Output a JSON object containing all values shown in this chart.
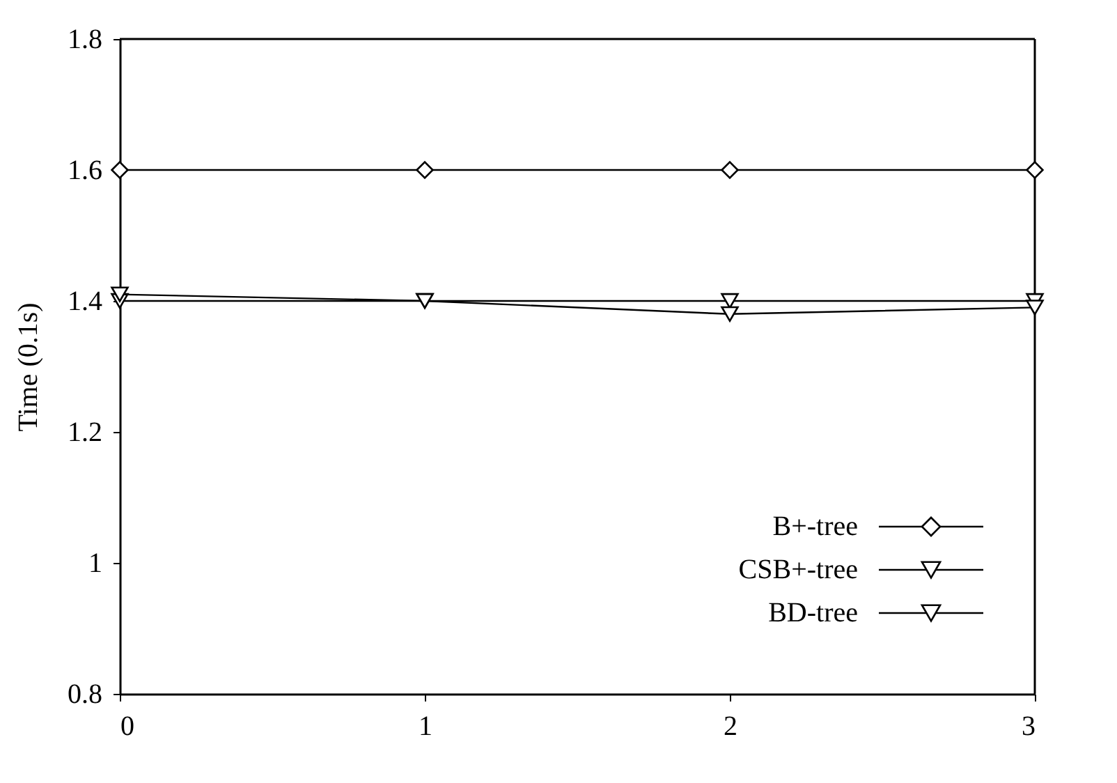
{
  "chart_data": {
    "type": "line",
    "ylabel": "Time (0.1s)",
    "x": [
      0,
      1,
      2,
      3
    ],
    "series": [
      {
        "name": "B+-tree",
        "color": "#000000",
        "marker": "diamond",
        "values": [
          1.6,
          1.6,
          1.6,
          1.6
        ]
      },
      {
        "name": "CSB+-tree",
        "color": "#000000",
        "marker": "triangle",
        "values": [
          1.4,
          1.4,
          1.4,
          1.4
        ]
      },
      {
        "name": "BD-tree",
        "color": "#000000",
        "marker": "triangle",
        "values": [
          1.41,
          1.4,
          1.38,
          1.39
        ]
      }
    ],
    "xlim": [
      0,
      3
    ],
    "xticks": [
      0,
      1,
      2,
      3
    ],
    "ylim": [
      0.8,
      1.8
    ],
    "yticks": [
      0.8,
      1,
      1.2,
      1.4,
      1.6,
      1.8
    ],
    "grid": false,
    "legend": "bottom right",
    "line_style": "solid"
  }
}
